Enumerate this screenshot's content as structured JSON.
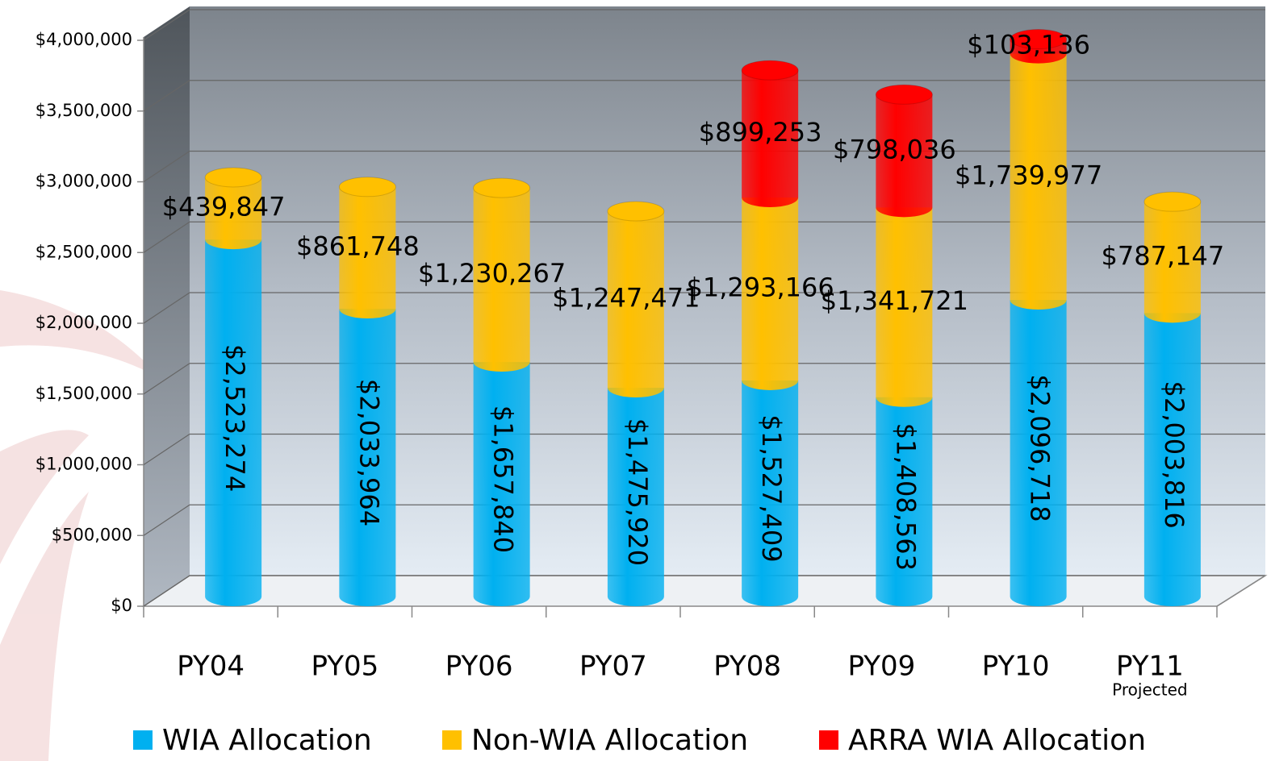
{
  "chart_data": {
    "type": "bar",
    "stacked": true,
    "categories": [
      "PY04",
      "PY05",
      "PY06",
      "PY07",
      "PY08",
      "PY09",
      "PY10",
      "PY11"
    ],
    "category_note": "Projected",
    "series": [
      {
        "name": "WIA Allocation",
        "color": "#00b0f0",
        "values": [
          2523274,
          2033964,
          1657840,
          1475920,
          1527409,
          1408563,
          2096718,
          2003816
        ],
        "value_labels": [
          "$2,523,274",
          "$2,033,964",
          "$1,657,840",
          "$1,475,920",
          "$1,527,409",
          "$1,408,563",
          "$2,096,718",
          "$2,003,816"
        ]
      },
      {
        "name": "Non-WIA Allocation",
        "color": "#ffc000",
        "values": [
          439847,
          861748,
          1230267,
          1247471,
          1293166,
          1341721,
          1739977,
          787147
        ],
        "value_labels": [
          "$439,847",
          "$861,748",
          "$1,230,267",
          "$1,247,471",
          "$1,293,166",
          "$1,341,721",
          "$1,739,977",
          "$787,147"
        ]
      },
      {
        "name": "ARRA WIA Allocation",
        "color": "#ff0000",
        "values": [
          null,
          null,
          null,
          null,
          899253,
          798036,
          103136,
          null
        ],
        "value_labels": [
          null,
          null,
          null,
          null,
          "$899,253",
          "$798,036",
          "$103,136",
          null
        ]
      }
    ],
    "ylim": [
      0,
      4000000
    ],
    "yticks": [
      {
        "value": 0,
        "label": "$0"
      },
      {
        "value": 500000,
        "label": "$500,000"
      },
      {
        "value": 1000000,
        "label": "$1,000,000"
      },
      {
        "value": 1500000,
        "label": "$1,500,000"
      },
      {
        "value": 2000000,
        "label": "$2,000,000"
      },
      {
        "value": 2500000,
        "label": "$2,500,000"
      },
      {
        "value": 3000000,
        "label": "$3,000,000"
      },
      {
        "value": 3500000,
        "label": "$3,500,000"
      },
      {
        "value": 4000000,
        "label": "$4,000,000"
      }
    ],
    "grid": true,
    "legend": "bottom"
  }
}
